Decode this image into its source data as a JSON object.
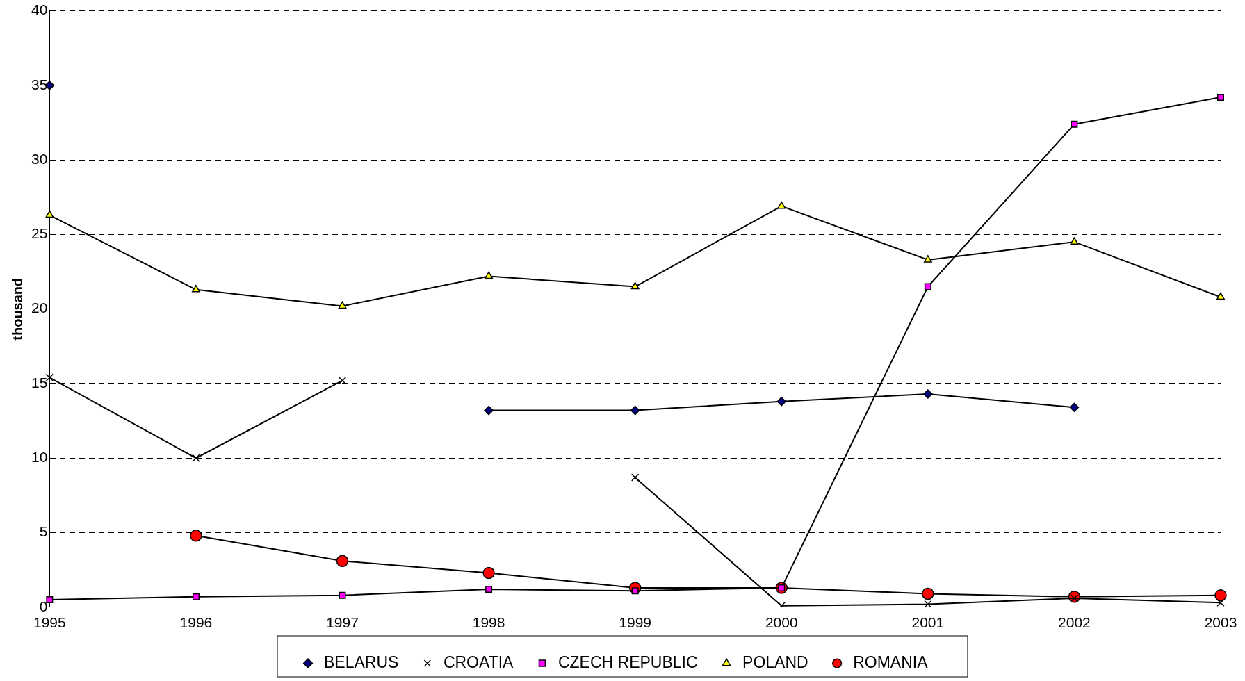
{
  "chart_data": {
    "type": "line",
    "ylabel": "thousand",
    "categories": [
      "1995",
      "1996",
      "1997",
      "1998",
      "1999",
      "2000",
      "2001",
      "2002",
      "2003"
    ],
    "ylim": [
      0,
      40
    ],
    "yticks": [
      0,
      5,
      10,
      15,
      20,
      25,
      30,
      35,
      40
    ],
    "grid": "y",
    "legend": "bottom",
    "line_style": "solid",
    "series": [
      {
        "name": "BELARUS",
        "color": "#000080",
        "marker": "diamond",
        "values": [
          35,
          null,
          null,
          13.2,
          13.2,
          13.8,
          14.3,
          13.4,
          null
        ]
      },
      {
        "name": "CROATIA",
        "color": "#000000",
        "marker": "cross",
        "values": [
          15.4,
          10,
          15.2,
          null,
          8.7,
          0.1,
          0.2,
          0.6,
          0.3
        ]
      },
      {
        "name": "CZECH REPUBLIC",
        "color": "#ff00ff",
        "marker": "square",
        "values": [
          0.5,
          0.7,
          0.8,
          1.2,
          1.1,
          1.3,
          21.5,
          32.4,
          34.2
        ]
      },
      {
        "name": "POLAND",
        "color": "#ffff00",
        "marker": "triangle",
        "values": [
          26.3,
          21.3,
          20.2,
          22.2,
          21.5,
          26.9,
          23.3,
          24.5,
          20.8
        ]
      },
      {
        "name": "ROMANIA",
        "color": "#ff0000",
        "marker": "circle",
        "values": [
          null,
          4.8,
          3.1,
          2.3,
          1.3,
          1.3,
          0.9,
          0.7,
          0.8
        ]
      }
    ]
  }
}
